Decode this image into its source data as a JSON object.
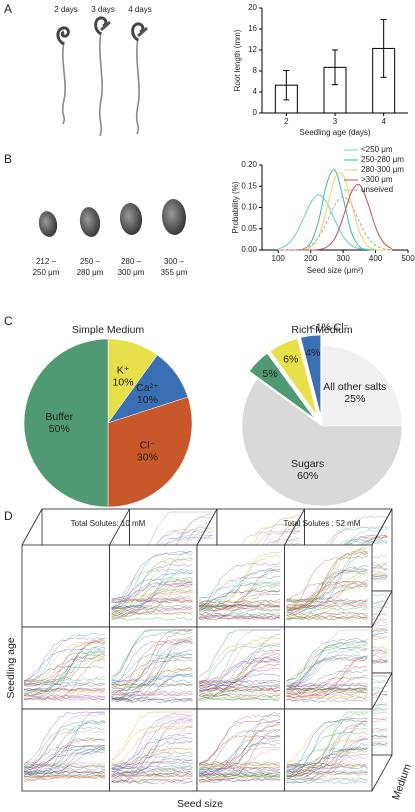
{
  "panel_labels": [
    "A",
    "B",
    "C",
    "D"
  ],
  "seedlings": {
    "labels": [
      "2 days",
      "3 days",
      "4 days"
    ]
  },
  "seeds": {
    "labels": [
      [
        "212 –",
        "250 μm"
      ],
      [
        "250 –",
        "280 μm"
      ],
      [
        "280 –",
        "300 μm"
      ],
      [
        "300 –",
        "355 μm"
      ]
    ]
  },
  "chart_data": [
    {
      "type": "bar",
      "categories": [
        "2",
        "3",
        "4"
      ],
      "values": [
        5.3,
        8.7,
        12.3
      ],
      "errors": [
        2.8,
        3.3,
        5.5
      ],
      "color": "#ffffff",
      "edge_color": "#000000",
      "xlabel": "Seedling age (days)",
      "ylabel": "Root length (mm)",
      "ylim": [
        0,
        20
      ],
      "yticks": [
        0,
        4,
        8,
        12,
        16,
        20
      ]
    },
    {
      "type": "line",
      "x": [
        100,
        125,
        150,
        175,
        200,
        225,
        250,
        275,
        300,
        325,
        350,
        375,
        400,
        425,
        450
      ],
      "series": [
        {
          "name": "<250 μm",
          "color": "#6cc5e8",
          "values": [
            0.003,
            0.011,
            0.032,
            0.07,
            0.111,
            0.13,
            0.111,
            0.07,
            0.032,
            0.011,
            0.003,
            0.001,
            0,
            0,
            0
          ]
        },
        {
          "name": "250-280 μm",
          "color": "#3cb8a0",
          "values": [
            0,
            0,
            0,
            0.002,
            0.017,
            0.07,
            0.157,
            0.188,
            0.122,
            0.043,
            0.008,
            0.001,
            0,
            0,
            0
          ]
        },
        {
          "name": "280-300 μm",
          "color": "#f0d060",
          "values": [
            0,
            0,
            0,
            0.001,
            0.007,
            0.033,
            0.097,
            0.169,
            0.177,
            0.112,
            0.043,
            0.01,
            0.001,
            0,
            0
          ]
        },
        {
          "name": ">300 μm",
          "color": "#c0504d",
          "values": [
            0,
            0,
            0,
            0,
            0,
            0.001,
            0.007,
            0.028,
            0.077,
            0.135,
            0.154,
            0.113,
            0.054,
            0.017,
            0.003
          ]
        },
        {
          "name": "unseived",
          "color": "#aaaaaa",
          "dashed": true,
          "values": [
            0,
            0,
            0,
            0.003,
            0.011,
            0.031,
            0.067,
            0.107,
            0.125,
            0.107,
            0.067,
            0.031,
            0.011,
            0.003,
            0.001
          ]
        }
      ],
      "xlabel": "Seed size (μm²)",
      "ylabel": "Probability (%)",
      "xlim": [
        50,
        500
      ],
      "xticks": [
        100,
        200,
        300,
        400,
        500
      ],
      "ylim": [
        0,
        0.2
      ],
      "yticks": [
        {
          "value": 0,
          "label": "0.00"
        },
        {
          "value": 0.05,
          "label": "0.05"
        },
        {
          "value": 0.1,
          "label": "0.10"
        },
        {
          "value": 0.15,
          "label": "0.15"
        },
        {
          "value": 0.2,
          "label": "0.20"
        }
      ],
      "legend": "upper right"
    },
    {
      "type": "pie",
      "title": "Simple Medium",
      "footer": "Total Solutes: 10 mM",
      "categories": [
        "K⁺",
        "Ca²⁺",
        "Cl⁻",
        "Buffer"
      ],
      "values": [
        10,
        10,
        30,
        50
      ],
      "value_labels": [
        "10%",
        "10%",
        "30%",
        "50%"
      ],
      "colors": [
        "#e8e04a",
        "#3a6fb5",
        "#c8582a",
        "#4f9a73"
      ],
      "exploded": [
        false,
        false,
        false,
        false
      ]
    },
    {
      "type": "pie",
      "title": "Rich Medium",
      "footer": "Total Solutes : 52 mM",
      "categories": [
        "All other salts",
        "Sugars",
        null,
        null,
        "<1% Cl⁻"
      ],
      "values": [
        25,
        60,
        5,
        6,
        4
      ],
      "value_labels": [
        "25%",
        "60%",
        "5%",
        "6%",
        "4%"
      ],
      "colors": [
        "#f0f0f0",
        "#d9d9d9",
        "#4f9a73",
        "#e8e04a",
        "#3a6fb5"
      ],
      "exploded": [
        false,
        false,
        true,
        true,
        true
      ]
    }
  ],
  "panel_d": {
    "ylabel": "Seedling age",
    "xlabel": "Seed size",
    "zlabel": "Medium"
  }
}
